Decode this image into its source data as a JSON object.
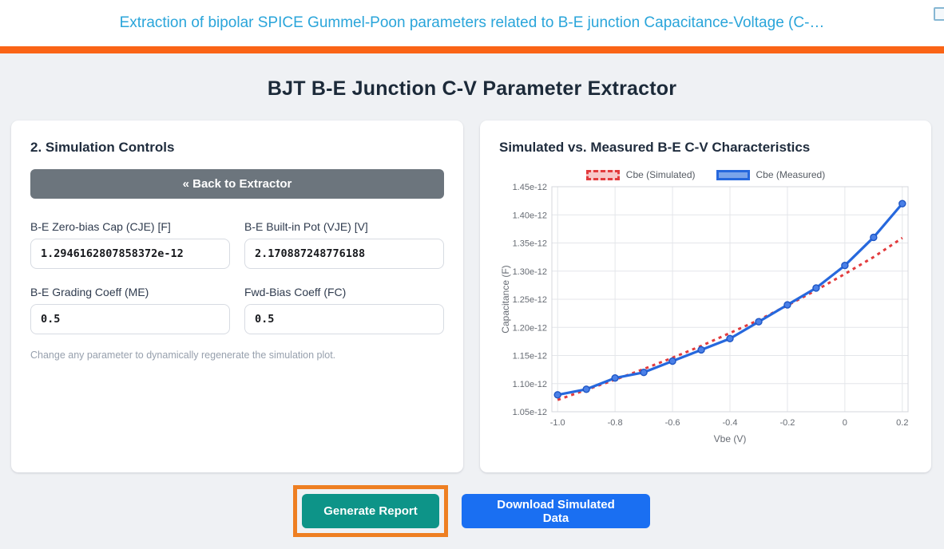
{
  "header": {
    "title": "Extraction of bipolar SPICE Gummel-Poon parameters related to B-E junction Capacitance-Voltage (C-…",
    "accent_color": "#fa6416",
    "title_color": "#2aa5da"
  },
  "page": {
    "title": "BJT B-E Junction C-V Parameter Extractor"
  },
  "controls_panel": {
    "heading": "2. Simulation Controls",
    "back_button_label": "« Back to Extractor",
    "fields": [
      {
        "label": "B-E Zero-bias Cap (CJE) [F]",
        "value": "1.2946162807858372e-12"
      },
      {
        "label": "B-E Built-in Pot (VJE) [V]",
        "value": "2.170887248776188"
      },
      {
        "label": "B-E Grading Coeff (ME)",
        "value": "0.5"
      },
      {
        "label": "Fwd-Bias Coeff (FC)",
        "value": "0.5"
      }
    ],
    "note": "Change any parameter to dynamically regenerate the simulation plot."
  },
  "chart_panel": {
    "heading": "Simulated vs. Measured B-E C-V Characteristics"
  },
  "chart_data": {
    "type": "line",
    "title": "Simulated vs. Measured B-E C-V Characteristics",
    "xlabel": "Vbe (V)",
    "ylabel": "Capacitance (F)",
    "x": [
      -1.0,
      -0.9,
      -0.8,
      -0.7,
      -0.6,
      -0.5,
      -0.4,
      -0.3,
      -0.2,
      -0.1,
      0.0,
      0.1,
      0.2
    ],
    "series": [
      {
        "name": "Cbe (Simulated)",
        "style": "dotted",
        "color": "#e23b3d",
        "values": [
          1.071e-12,
          1.089e-12,
          1.107e-12,
          1.126e-12,
          1.146e-12,
          1.167e-12,
          1.19e-12,
          1.213e-12,
          1.239e-12,
          1.266e-12,
          1.295e-12,
          1.325e-12,
          1.359e-12
        ]
      },
      {
        "name": "Cbe (Measured)",
        "style": "solid-markers",
        "color": "#2668dd",
        "marker_fill": "#4a80e8",
        "marker_stroke": "#1f56c4",
        "values": [
          1.08e-12,
          1.09e-12,
          1.11e-12,
          1.12e-12,
          1.14e-12,
          1.16e-12,
          1.18e-12,
          1.21e-12,
          1.24e-12,
          1.27e-12,
          1.31e-12,
          1.36e-12,
          1.42e-12
        ]
      }
    ],
    "xlim": [
      -1.02,
      0.22
    ],
    "ylim": [
      1.05e-12,
      1.45e-12
    ],
    "xticks": [
      -1.0,
      -0.8,
      -0.6,
      -0.4,
      -0.2,
      0,
      0.2
    ],
    "yticks": [
      1.05e-12,
      1.1e-12,
      1.15e-12,
      1.2e-12,
      1.25e-12,
      1.3e-12,
      1.35e-12,
      1.4e-12,
      1.45e-12
    ],
    "grid": true,
    "legend_position": "top"
  },
  "actions": {
    "generate_report_label": "Generate Report",
    "download_data_label": "Download Simulated Data",
    "highlight_color": "#ee7f22",
    "generate_color": "#0d9488",
    "download_color": "#1a6ff2"
  }
}
